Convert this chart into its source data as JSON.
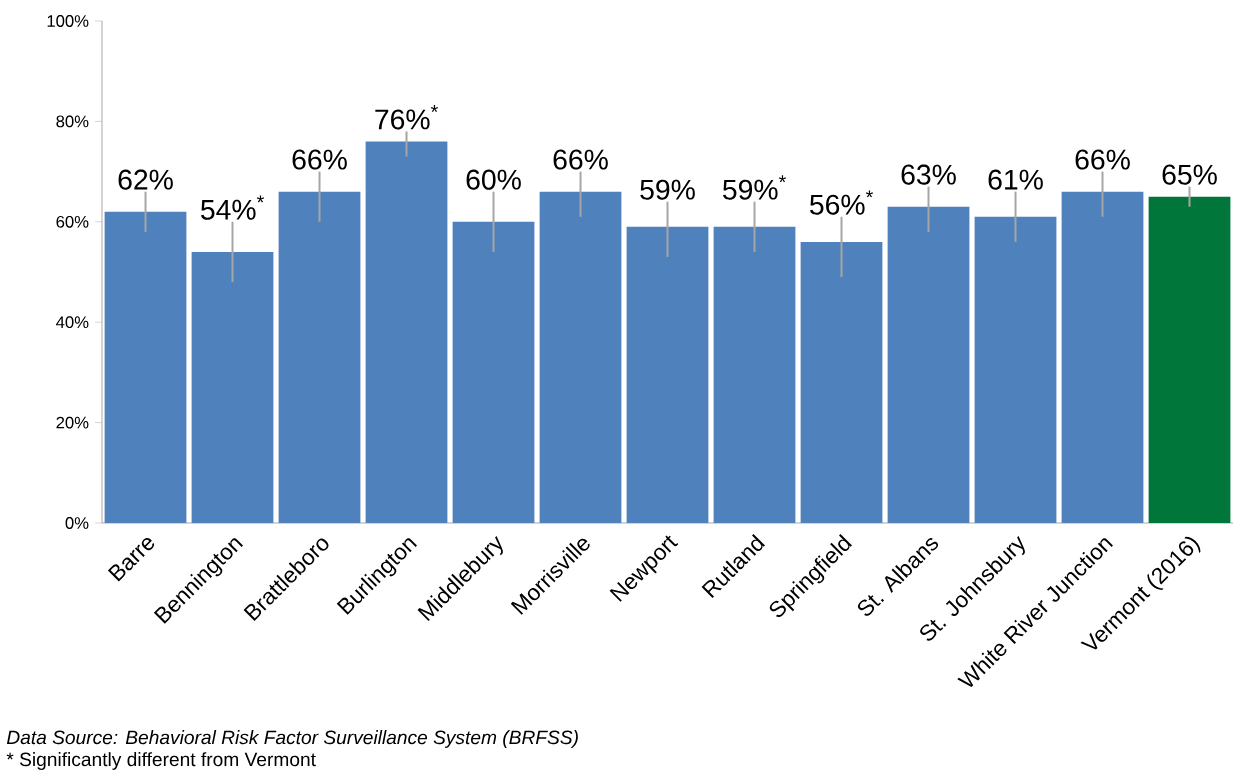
{
  "chart_data": {
    "type": "bar",
    "categories": [
      "Barre",
      "Bennington",
      "Brattleboro",
      "Burlington",
      "Middlebury",
      "Morrisville",
      "Newport",
      "Rutland",
      "Springfield",
      "St. Albans",
      "St. Johnsbury",
      "White River Junction",
      "Vermont (2016)"
    ],
    "values": [
      62,
      54,
      66,
      76,
      60,
      66,
      59,
      59,
      56,
      63,
      61,
      66,
      65
    ],
    "colors": [
      "#4f81bd",
      "#4f81bd",
      "#4f81bd",
      "#4f81bd",
      "#4f81bd",
      "#4f81bd",
      "#4f81bd",
      "#4f81bd",
      "#4f81bd",
      "#4f81bd",
      "#4f81bd",
      "#4f81bd",
      "#00763a"
    ],
    "errors": [
      [
        58,
        66
      ],
      [
        48,
        60
      ],
      [
        60,
        70
      ],
      [
        73,
        78
      ],
      [
        54,
        66
      ],
      [
        61,
        70
      ],
      [
        53,
        64
      ],
      [
        54,
        64
      ],
      [
        49,
        61
      ],
      [
        58,
        67
      ],
      [
        56,
        66
      ],
      [
        61,
        70
      ],
      [
        63,
        67
      ]
    ],
    "value_labels": [
      "62%",
      "54%$^{*}$",
      "66%",
      "76%$^{*}$",
      "60%",
      "66%",
      "59%",
      "59%$^{*}$",
      "56%$^{*}$",
      "63%",
      "61%",
      "66%",
      "65%"
    ],
    "ylim": [
      0,
      100
    ],
    "yticks": [
      {
        "value": 0,
        "label": "0%"
      },
      {
        "value": 20,
        "label": "20%"
      },
      {
        "value": 40,
        "label": "40%"
      },
      {
        "value": 60,
        "label": "60%"
      },
      {
        "value": 80,
        "label": "80%"
      },
      {
        "value": 100,
        "label": "100%"
      }
    ],
    "annotations": [
      "Data Source: Behavioral Risk Factor Surveillance System (BRFSS)",
      "* Significantly different from Vermont"
    ]
  }
}
